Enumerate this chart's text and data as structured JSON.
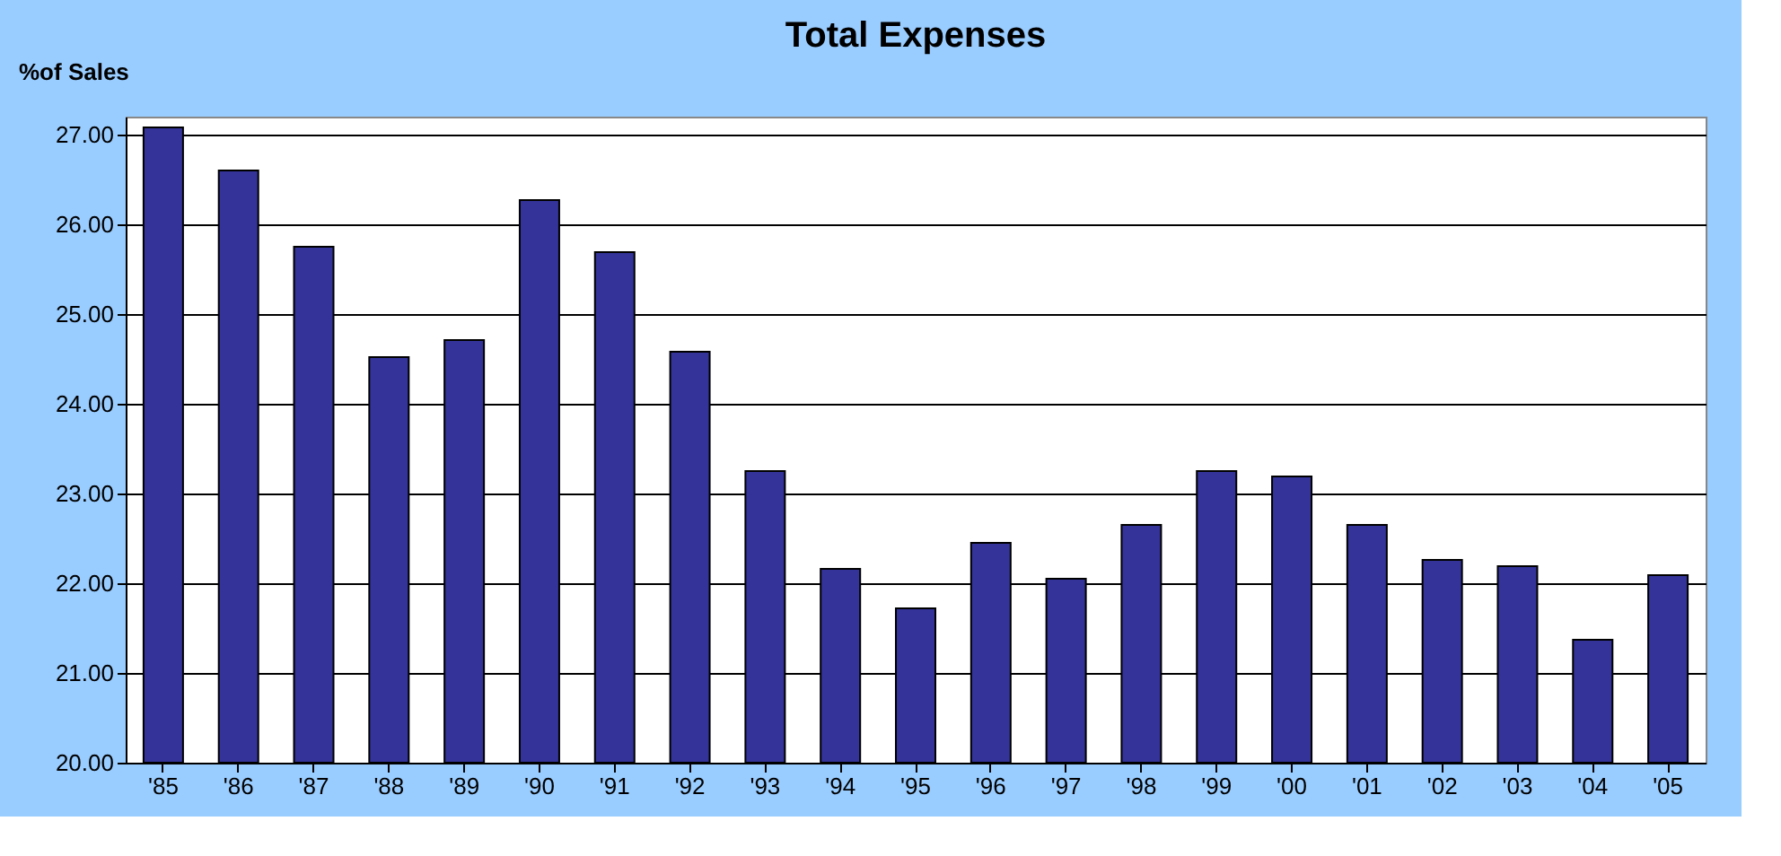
{
  "chart_data": {
    "type": "bar",
    "title": "Total Expenses",
    "ylabel": "%of Sales",
    "categories": [
      "'85",
      "'86",
      "'87",
      "'88",
      "'89",
      "'90",
      "'91",
      "'92",
      "'93",
      "'94",
      "'95",
      "'96",
      "'97",
      "'98",
      "'99",
      "'00",
      "'01",
      "'02",
      "'03",
      "'04",
      "'05"
    ],
    "values": [
      27.08,
      26.6,
      25.75,
      24.52,
      24.71,
      26.27,
      25.69,
      24.58,
      23.25,
      22.16,
      21.72,
      22.45,
      22.05,
      22.65,
      23.25,
      23.19,
      22.65,
      22.26,
      22.19,
      21.37,
      22.09
    ],
    "color": "#333399",
    "ylim": [
      20,
      27.2
    ],
    "yticks": [
      {
        "value": 20,
        "label": "20.00"
      },
      {
        "value": 21,
        "label": "21.00"
      },
      {
        "value": 22,
        "label": "22.00"
      },
      {
        "value": 23,
        "label": "23.00"
      },
      {
        "value": 24,
        "label": "24.00"
      },
      {
        "value": 25,
        "label": "25.00"
      },
      {
        "value": 26,
        "label": "26.00"
      },
      {
        "value": 27,
        "label": "27.00"
      }
    ],
    "grid": "y"
  }
}
